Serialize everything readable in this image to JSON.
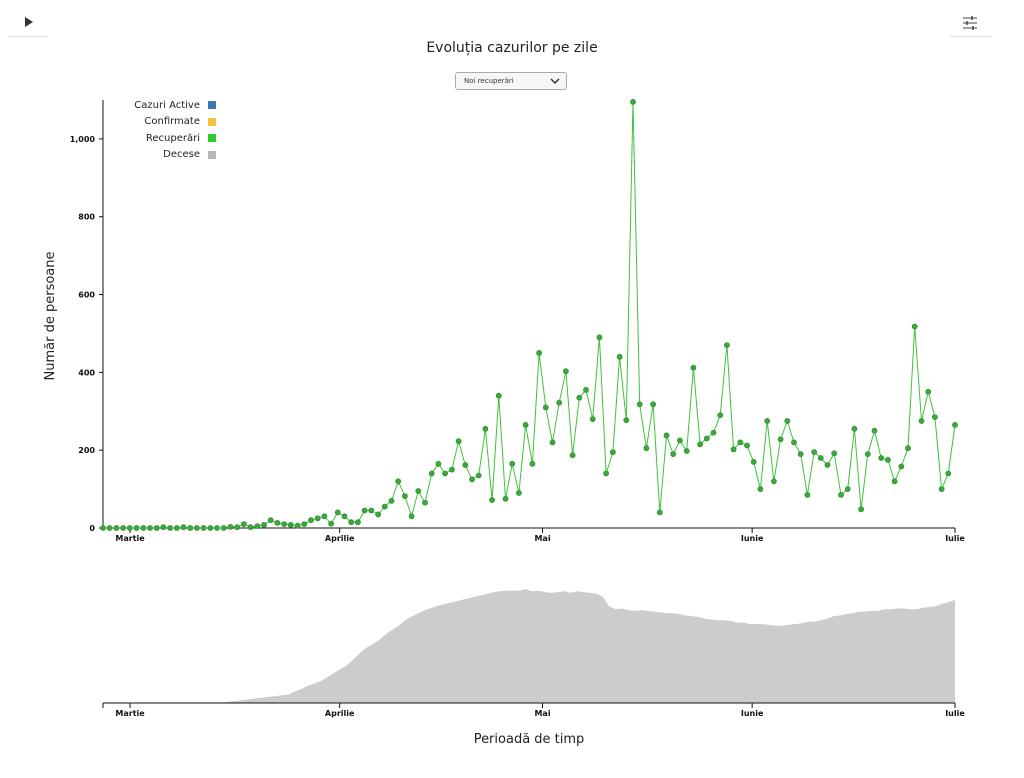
{
  "controls": {
    "play_icon": "play-icon",
    "settings_icon": "sliders-icon"
  },
  "chart_title": "Evoluția cazurilor pe zile",
  "selector": {
    "value": "Noi recuperări",
    "icon": "chevron-down-icon"
  },
  "legend": [
    {
      "label": "Cazuri Active",
      "color": "#3a78b5"
    },
    {
      "label": "Confirmate",
      "color": "#f5c243"
    },
    {
      "label": "Recuperări",
      "color": "#2ecc2e"
    },
    {
      "label": "Decese",
      "color": "#b8b8b8"
    }
  ],
  "chart_data": {
    "type": "line",
    "title": "Evoluția cazurilor pe zile",
    "ylabel": "Număr de persoane",
    "xlabel": "Perioadă de timp",
    "x_start": "2020-02-26",
    "x_end": "2020-07-01",
    "x_ticks": [
      {
        "date": "2020-03-01",
        "label": "Martie"
      },
      {
        "date": "2020-04-01",
        "label": "Aprilie"
      },
      {
        "date": "2020-05-01",
        "label": "Mai"
      },
      {
        "date": "2020-06-01",
        "label": "Iunie"
      },
      {
        "date": "2020-07-01",
        "label": "Iulie"
      }
    ],
    "y_ticks": [
      0,
      200,
      400,
      600,
      800,
      1000
    ],
    "y_tick_labels": [
      "0",
      "200",
      "400",
      "600",
      "800",
      "1,000"
    ],
    "ylim": [
      0,
      1100
    ],
    "line_color": "#3cc43c",
    "point_color": "#3aa83a",
    "series": [
      {
        "name": "Recuperări",
        "values": [
          0,
          0,
          0,
          0,
          0,
          0,
          0,
          0,
          0,
          2,
          0,
          0,
          2,
          0,
          0,
          0,
          0,
          0,
          0,
          3,
          2,
          10,
          2,
          5,
          8,
          20,
          13,
          10,
          8,
          6,
          10,
          20,
          25,
          30,
          11,
          40,
          30,
          15,
          15,
          45,
          45,
          35,
          55,
          70,
          120,
          82,
          30,
          95,
          65,
          140,
          165,
          140,
          150,
          223,
          162,
          125,
          135,
          255,
          72,
          340,
          75,
          165,
          90,
          265,
          165,
          450,
          310,
          220,
          322,
          403,
          187,
          335,
          355,
          280,
          490,
          140,
          195,
          440,
          277,
          1095,
          318,
          205,
          318,
          40,
          238,
          190,
          225,
          198,
          412,
          215,
          230,
          245,
          290,
          470,
          202,
          220,
          212,
          170,
          100,
          275,
          120,
          228,
          275,
          220,
          190,
          85,
          195,
          180,
          162,
          192,
          85,
          100,
          255,
          48,
          190,
          250,
          180,
          175,
          120,
          158,
          205,
          518,
          275,
          350,
          285,
          100,
          140,
          265
        ]
      }
    ],
    "overview": {
      "type": "area",
      "color": "#cccccc",
      "values": [
        0,
        0,
        0,
        0,
        0,
        0,
        0,
        0,
        0,
        0,
        0,
        0,
        0,
        0,
        0,
        0,
        0,
        0,
        0,
        1,
        2,
        3,
        4,
        5,
        6,
        7,
        8,
        9,
        10,
        11,
        15,
        18,
        22,
        25,
        28,
        33,
        38,
        43,
        48,
        55,
        63,
        70,
        75,
        80,
        87,
        93,
        98,
        105,
        110,
        114,
        118,
        121,
        124,
        126,
        128,
        130,
        132,
        134,
        136,
        138,
        140,
        142,
        143,
        144,
        144,
        144,
        146,
        143,
        144,
        142,
        141,
        142,
        143,
        141,
        143,
        142,
        141,
        140,
        136,
        124,
        120,
        121,
        119,
        118,
        119,
        118,
        117,
        116,
        115,
        115,
        114,
        112,
        111,
        110,
        108,
        107,
        106,
        106,
        105,
        103,
        103,
        101,
        101,
        101,
        100,
        99,
        99,
        100,
        101,
        102,
        104,
        104,
        106,
        108,
        111,
        112,
        114,
        115,
        117,
        117,
        118,
        118,
        120,
        120,
        121,
        121,
        120,
        120,
        122,
        123,
        124,
        127,
        129,
        132
      ]
    }
  },
  "colors": {
    "grid_axis": "#111111",
    "overview_fill": "#cccccc"
  }
}
